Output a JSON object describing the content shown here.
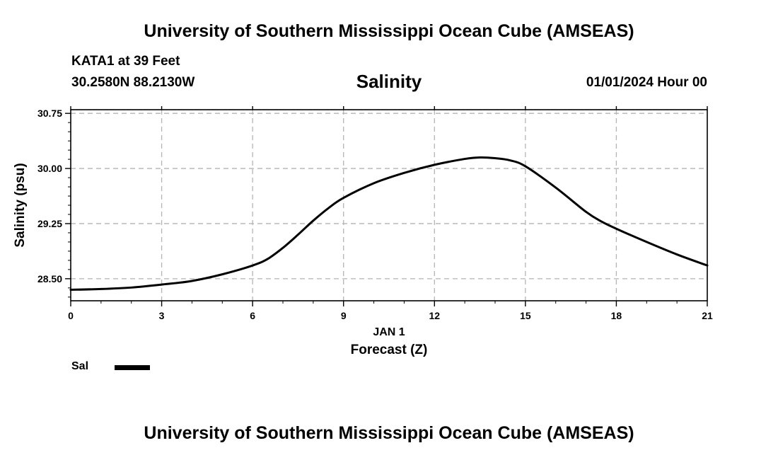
{
  "header": {
    "title": "University of Southern Mississippi Ocean Cube (AMSEAS)",
    "station": "KATA1 at 39 Feet",
    "coords": "30.2580N  88.2130W",
    "main_title": "Salinity",
    "datetime": "01/01/2024 Hour 00"
  },
  "footer": {
    "title": "University of Southern Mississippi Ocean Cube (AMSEAS)"
  },
  "legend": {
    "label": "Sal",
    "color": "#000000"
  },
  "chart_data": {
    "type": "line",
    "title": "Salinity",
    "xlabel": "Forecast (Z)",
    "xsublabel": "JAN 1",
    "ylabel": "Salinity (psu)",
    "xlim": [
      0,
      21
    ],
    "ylim": [
      28.2,
      30.8
    ],
    "xticks": [
      0,
      3,
      6,
      9,
      12,
      15,
      18,
      21
    ],
    "xtick_labels": [
      "0",
      "3",
      "6",
      "9",
      "12",
      "15",
      "18",
      "21"
    ],
    "yticks": [
      28.5,
      29.25,
      30.0,
      30.75
    ],
    "ytick_labels": [
      "28.50",
      "29.25",
      "30.00",
      "30.75"
    ],
    "grid": true,
    "series": [
      {
        "name": "Sal",
        "color": "#000000",
        "x": [
          0,
          1,
          2,
          3,
          4,
          5,
          6,
          6.5,
          7,
          7.5,
          8,
          8.5,
          9,
          10,
          11,
          12,
          13,
          13.5,
          14,
          14.5,
          15,
          16,
          17,
          17.5,
          18,
          19,
          20,
          21
        ],
        "y": [
          28.35,
          28.36,
          28.38,
          28.42,
          28.47,
          28.56,
          28.68,
          28.77,
          28.92,
          29.1,
          29.29,
          29.46,
          29.6,
          29.8,
          29.94,
          30.05,
          30.13,
          30.15,
          30.14,
          30.11,
          30.03,
          29.74,
          29.41,
          29.28,
          29.18,
          29.0,
          28.83,
          28.68
        ]
      }
    ]
  }
}
